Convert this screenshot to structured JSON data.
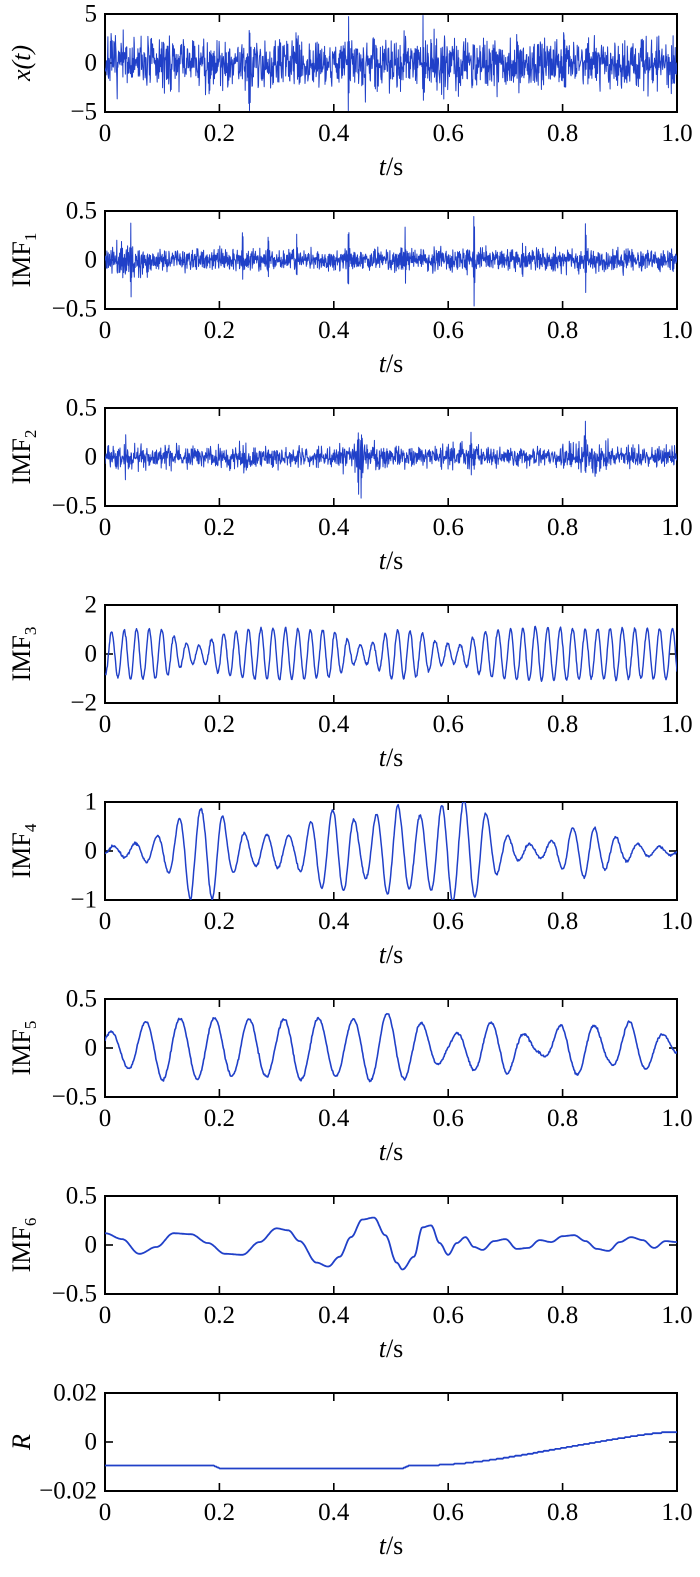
{
  "figure": {
    "description": "EMD decomposition of signal x(t) into six IMFs and residual R",
    "line_color": "#2040c8",
    "axis_color": "#000000",
    "background": "#ffffff"
  },
  "chart_data": [
    {
      "type": "line",
      "ylabel": {
        "base": "x(t)",
        "sub": "",
        "italic": true
      },
      "xlabel": {
        "var": "t",
        "unit": "/s"
      },
      "ylim": [
        -5,
        5
      ],
      "xlim": [
        0,
        1
      ],
      "y_ticks": [
        "5",
        "0",
        "−5"
      ],
      "x_ticks": [
        "0",
        "0.2",
        "0.4",
        "0.6",
        "0.8",
        "1.0"
      ],
      "signal": {
        "kind": "noise",
        "seed": 7,
        "n": 1600,
        "std": 1.3,
        "clip": 4.85,
        "lw": 1.0,
        "spikes": [
          [
            0.252,
            4.6
          ],
          [
            0.425,
            -4.8
          ],
          [
            0.556,
            4.4
          ]
        ]
      }
    },
    {
      "type": "line",
      "ylabel": {
        "base": "IMF",
        "sub": "1",
        "italic": false
      },
      "xlabel": {
        "var": "t",
        "unit": "/s"
      },
      "ylim": [
        -0.5,
        0.5
      ],
      "xlim": [
        0,
        1
      ],
      "y_ticks": [
        "0.5",
        "0",
        "−0.5"
      ],
      "x_ticks": [
        "0",
        "0.2",
        "0.4",
        "0.6",
        "0.8",
        "1.0"
      ],
      "signal": {
        "kind": "noise",
        "seed": 11,
        "n": 1800,
        "std": 0.05,
        "clip": 0.48,
        "lw": 1.0,
        "env": [
          [
            0,
            1.2
          ],
          [
            0.03,
            1.8
          ],
          [
            0.05,
            1.4
          ],
          [
            0.1,
            1.0
          ],
          [
            0.2,
            1.1
          ],
          [
            0.3,
            1.0
          ],
          [
            0.4,
            1.1
          ],
          [
            0.5,
            1.0
          ],
          [
            0.6,
            1.2
          ],
          [
            0.7,
            1.0
          ],
          [
            0.8,
            1.3
          ],
          [
            0.87,
            1.1
          ],
          [
            1,
            1.2
          ]
        ],
        "spikes": [
          [
            0.045,
            0.42
          ],
          [
            0.24,
            0.3
          ],
          [
            0.285,
            0.18
          ],
          [
            0.335,
            0.22
          ],
          [
            0.425,
            0.32
          ],
          [
            0.525,
            0.18
          ],
          [
            0.645,
            0.48
          ],
          [
            0.73,
            0.15
          ],
          [
            0.84,
            0.36
          ]
        ]
      }
    },
    {
      "type": "line",
      "ylabel": {
        "base": "IMF",
        "sub": "2",
        "italic": false
      },
      "xlabel": {
        "var": "t",
        "unit": "/s"
      },
      "ylim": [
        -0.5,
        0.5
      ],
      "xlim": [
        0,
        1
      ],
      "y_ticks": [
        "0.5",
        "0",
        "−0.5"
      ],
      "x_ticks": [
        "0",
        "0.2",
        "0.4",
        "0.6",
        "0.8",
        "1.0"
      ],
      "signal": {
        "kind": "noise",
        "seed": 23,
        "n": 1600,
        "std": 0.045,
        "clip": 0.48,
        "lw": 1.0,
        "env": [
          [
            0,
            1.0
          ],
          [
            0.035,
            1.9
          ],
          [
            0.07,
            1.1
          ],
          [
            0.12,
            1.4
          ],
          [
            0.16,
            1.0
          ],
          [
            0.24,
            1.5
          ],
          [
            0.3,
            1.0
          ],
          [
            0.38,
            1.1
          ],
          [
            0.44,
            1.8
          ],
          [
            0.5,
            1.0
          ],
          [
            0.57,
            1.2
          ],
          [
            0.63,
            1.5
          ],
          [
            0.7,
            1.0
          ],
          [
            0.78,
            1.0
          ],
          [
            0.845,
            1.9
          ],
          [
            0.9,
            1.2
          ],
          [
            1,
            1.1
          ]
        ],
        "spikes": [
          [
            0.035,
            0.2
          ],
          [
            0.443,
            0.36
          ],
          [
            0.448,
            -0.3
          ],
          [
            0.64,
            0.25
          ],
          [
            0.84,
            0.29
          ]
        ]
      }
    },
    {
      "type": "line",
      "ylabel": {
        "base": "IMF",
        "sub": "3",
        "italic": false
      },
      "xlabel": {
        "var": "t",
        "unit": "/s"
      },
      "ylim": [
        -2,
        2
      ],
      "xlim": [
        0,
        1
      ],
      "y_ticks": [
        "2",
        "0",
        "−2"
      ],
      "x_ticks": [
        "0",
        "0.2",
        "0.4",
        "0.6",
        "0.8",
        "1.0"
      ],
      "signal": {
        "kind": "am",
        "seed": 31,
        "n": 1200,
        "freq": 46,
        "fm": 0.25,
        "noise": 0.03,
        "lw": 1.4,
        "env": [
          [
            0,
            0.85
          ],
          [
            0.05,
            1.05
          ],
          [
            0.1,
            1.0
          ],
          [
            0.14,
            0.45
          ],
          [
            0.17,
            0.35
          ],
          [
            0.2,
            0.8
          ],
          [
            0.25,
            1.0
          ],
          [
            0.3,
            1.05
          ],
          [
            0.35,
            1.0
          ],
          [
            0.4,
            0.95
          ],
          [
            0.44,
            0.35
          ],
          [
            0.47,
            0.5
          ],
          [
            0.5,
            1.0
          ],
          [
            0.55,
            0.9
          ],
          [
            0.58,
            0.5
          ],
          [
            0.62,
            0.35
          ],
          [
            0.66,
            0.9
          ],
          [
            0.7,
            1.0
          ],
          [
            0.75,
            1.1
          ],
          [
            0.8,
            1.05
          ],
          [
            0.85,
            1.0
          ],
          [
            0.9,
            1.05
          ],
          [
            0.95,
            1.0
          ],
          [
            1,
            1.05
          ]
        ]
      }
    },
    {
      "type": "line",
      "ylabel": {
        "base": "IMF",
        "sub": "4",
        "italic": false
      },
      "xlabel": {
        "var": "t",
        "unit": "/s"
      },
      "ylim": [
        -1,
        1
      ],
      "xlim": [
        0,
        1
      ],
      "y_ticks": [
        "1",
        "0",
        "−1"
      ],
      "x_ticks": [
        "0",
        "0.2",
        "0.4",
        "0.6",
        "0.8",
        "1.0"
      ],
      "signal": {
        "kind": "am",
        "seed": 41,
        "n": 1000,
        "freq": 26,
        "fm": 0.3,
        "noise": 0.012,
        "lw": 1.5,
        "env": [
          [
            0,
            0.08
          ],
          [
            0.05,
            0.15
          ],
          [
            0.09,
            0.3
          ],
          [
            0.12,
            0.5
          ],
          [
            0.15,
            1.0
          ],
          [
            0.17,
            0.85
          ],
          [
            0.19,
            1.0
          ],
          [
            0.22,
            0.45
          ],
          [
            0.26,
            0.3
          ],
          [
            0.3,
            0.35
          ],
          [
            0.33,
            0.3
          ],
          [
            0.36,
            0.6
          ],
          [
            0.39,
            0.85
          ],
          [
            0.42,
            0.8
          ],
          [
            0.45,
            0.5
          ],
          [
            0.48,
            0.8
          ],
          [
            0.51,
            0.95
          ],
          [
            0.54,
            0.7
          ],
          [
            0.57,
            0.8
          ],
          [
            0.6,
            1.0
          ],
          [
            0.63,
            1.05
          ],
          [
            0.66,
            0.85
          ],
          [
            0.69,
            0.4
          ],
          [
            0.72,
            0.2
          ],
          [
            0.75,
            0.12
          ],
          [
            0.78,
            0.2
          ],
          [
            0.81,
            0.45
          ],
          [
            0.84,
            0.55
          ],
          [
            0.87,
            0.4
          ],
          [
            0.9,
            0.25
          ],
          [
            0.94,
            0.12
          ],
          [
            1,
            0.07
          ]
        ]
      }
    },
    {
      "type": "line",
      "ylabel": {
        "base": "IMF",
        "sub": "5",
        "italic": false
      },
      "xlabel": {
        "var": "t",
        "unit": "/s"
      },
      "ylim": [
        -0.5,
        0.5
      ],
      "xlim": [
        0,
        1
      ],
      "y_ticks": [
        "0.5",
        "0",
        "−0.5"
      ],
      "x_ticks": [
        "0",
        "0.2",
        "0.4",
        "0.6",
        "0.8",
        "1.0"
      ],
      "signal": {
        "kind": "am",
        "seed": 53,
        "n": 900,
        "freq": 16.5,
        "fm": 0.15,
        "noise": 0.006,
        "lw": 1.6,
        "env": [
          [
            0,
            0.15
          ],
          [
            0.05,
            0.22
          ],
          [
            0.1,
            0.33
          ],
          [
            0.13,
            0.3
          ],
          [
            0.17,
            0.32
          ],
          [
            0.22,
            0.28
          ],
          [
            0.27,
            0.3
          ],
          [
            0.3,
            0.28
          ],
          [
            0.34,
            0.33
          ],
          [
            0.38,
            0.3
          ],
          [
            0.42,
            0.28
          ],
          [
            0.46,
            0.33
          ],
          [
            0.5,
            0.36
          ],
          [
            0.53,
            0.3
          ],
          [
            0.57,
            0.22
          ],
          [
            0.6,
            0.1
          ],
          [
            0.63,
            0.2
          ],
          [
            0.66,
            0.25
          ],
          [
            0.7,
            0.28
          ],
          [
            0.73,
            0.15
          ],
          [
            0.76,
            0.05
          ],
          [
            0.8,
            0.25
          ],
          [
            0.84,
            0.28
          ],
          [
            0.88,
            0.15
          ],
          [
            0.92,
            0.28
          ],
          [
            0.96,
            0.18
          ],
          [
            1,
            0.08
          ]
        ]
      }
    },
    {
      "type": "line",
      "ylabel": {
        "base": "IMF",
        "sub": "6",
        "italic": false
      },
      "xlabel": {
        "var": "t",
        "unit": "/s"
      },
      "ylim": [
        -0.5,
        0.5
      ],
      "xlim": [
        0,
        1
      ],
      "y_ticks": [
        "0.5",
        "0",
        "−0.5"
      ],
      "x_ticks": [
        "0",
        "0.2",
        "0.4",
        "0.6",
        "0.8",
        "1.0"
      ],
      "signal": {
        "kind": "points",
        "interp": "cos",
        "n": 700,
        "lw": 1.8,
        "pts": [
          [
            0,
            0.12
          ],
          [
            0.03,
            0.06
          ],
          [
            0.06,
            -0.09
          ],
          [
            0.09,
            -0.02
          ],
          [
            0.12,
            0.12
          ],
          [
            0.15,
            0.11
          ],
          [
            0.18,
            0.02
          ],
          [
            0.21,
            -0.09
          ],
          [
            0.24,
            -0.1
          ],
          [
            0.27,
            0.03
          ],
          [
            0.3,
            0.17
          ],
          [
            0.32,
            0.15
          ],
          [
            0.34,
            0.04
          ],
          [
            0.37,
            -0.18
          ],
          [
            0.39,
            -0.22
          ],
          [
            0.41,
            -0.12
          ],
          [
            0.43,
            0.08
          ],
          [
            0.45,
            0.26
          ],
          [
            0.47,
            0.28
          ],
          [
            0.49,
            0.1
          ],
          [
            0.51,
            -0.18
          ],
          [
            0.52,
            -0.25
          ],
          [
            0.54,
            -0.12
          ],
          [
            0.555,
            0.18
          ],
          [
            0.57,
            0.2
          ],
          [
            0.585,
            0.02
          ],
          [
            0.6,
            -0.1
          ],
          [
            0.615,
            0.02
          ],
          [
            0.63,
            0.08
          ],
          [
            0.645,
            -0.02
          ],
          [
            0.66,
            -0.05
          ],
          [
            0.68,
            0.04
          ],
          [
            0.7,
            0.06
          ],
          [
            0.72,
            -0.04
          ],
          [
            0.74,
            -0.03
          ],
          [
            0.76,
            0.05
          ],
          [
            0.78,
            0.03
          ],
          [
            0.8,
            0.09
          ],
          [
            0.82,
            0.1
          ],
          [
            0.84,
            0.04
          ],
          [
            0.86,
            -0.04
          ],
          [
            0.88,
            -0.06
          ],
          [
            0.9,
            0.03
          ],
          [
            0.92,
            0.08
          ],
          [
            0.94,
            0.05
          ],
          [
            0.96,
            -0.03
          ],
          [
            0.98,
            0.04
          ],
          [
            1,
            0.03
          ]
        ]
      }
    },
    {
      "type": "line",
      "ylabel": {
        "base": "R",
        "sub": "",
        "italic": true
      },
      "xlabel": {
        "var": "t",
        "unit": "/s"
      },
      "ylim": [
        -0.02,
        0.02
      ],
      "xlim": [
        0,
        1
      ],
      "y_ticks": [
        "0.02",
        "0",
        "−0.02"
      ],
      "x_ticks": [
        "0",
        "0.2",
        "0.4",
        "0.6",
        "0.8",
        "1.0"
      ],
      "signal": {
        "kind": "points",
        "interp": "linear",
        "n": 500,
        "quant": 0.0004,
        "lw": 1.8,
        "pts": [
          [
            0,
            -0.0095
          ],
          [
            0.19,
            -0.0095
          ],
          [
            0.2,
            -0.0108
          ],
          [
            0.52,
            -0.0108
          ],
          [
            0.53,
            -0.0098
          ],
          [
            0.57,
            -0.0096
          ],
          [
            0.6,
            -0.0092
          ],
          [
            0.63,
            -0.0086
          ],
          [
            0.66,
            -0.0078
          ],
          [
            0.69,
            -0.0068
          ],
          [
            0.72,
            -0.0057
          ],
          [
            0.75,
            -0.0045
          ],
          [
            0.78,
            -0.0033
          ],
          [
            0.81,
            -0.0021
          ],
          [
            0.84,
            -0.0009
          ],
          [
            0.87,
            0.0003
          ],
          [
            0.9,
            0.0015
          ],
          [
            0.93,
            0.0026
          ],
          [
            0.96,
            0.0035
          ],
          [
            0.98,
            0.004
          ],
          [
            1,
            0.0041
          ]
        ]
      }
    }
  ]
}
